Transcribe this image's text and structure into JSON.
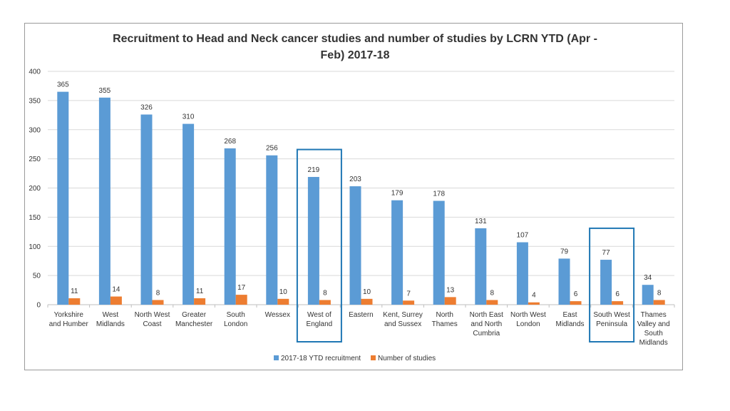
{
  "chart_data": {
    "type": "bar",
    "title_lines": [
      "Recruitment to Head and Neck cancer studies and number of studies by LCRN YTD (Apr -",
      "Feb) 2017-18"
    ],
    "categories": [
      [
        "Yorkshire",
        "and Humber"
      ],
      [
        "West",
        "Midlands"
      ],
      [
        "North West",
        "Coast"
      ],
      [
        "Greater",
        "Manchester"
      ],
      [
        "South",
        "London"
      ],
      [
        "Wessex"
      ],
      [
        "West of",
        "England"
      ],
      [
        "Eastern"
      ],
      [
        "Kent, Surrey",
        "and Sussex"
      ],
      [
        "North",
        "Thames"
      ],
      [
        "North East",
        "and North",
        "Cumbria"
      ],
      [
        "North West",
        "London"
      ],
      [
        "East",
        "Midlands"
      ],
      [
        "South West",
        "Peninsula"
      ],
      [
        "Thames",
        "Valley and",
        "South",
        "Midlands"
      ]
    ],
    "series": [
      {
        "name": "2017-18 YTD recruitment",
        "color": "#5b9bd5",
        "values": [
          365,
          355,
          326,
          310,
          268,
          256,
          219,
          203,
          179,
          178,
          131,
          107,
          79,
          77,
          34
        ]
      },
      {
        "name": "Number of studies",
        "color": "#ed7d31",
        "values": [
          11,
          14,
          8,
          11,
          17,
          10,
          8,
          10,
          7,
          13,
          8,
          4,
          6,
          6,
          8
        ]
      }
    ],
    "ylim": [
      0,
      400
    ],
    "yticks": [
      0,
      50,
      100,
      150,
      200,
      250,
      300,
      350,
      400
    ],
    "grid": true,
    "legend_position": "bottom",
    "highlighted_categories": [
      6,
      13
    ],
    "highlight_color": "#1f77b4",
    "gridline_color": "#d9d9d9"
  }
}
